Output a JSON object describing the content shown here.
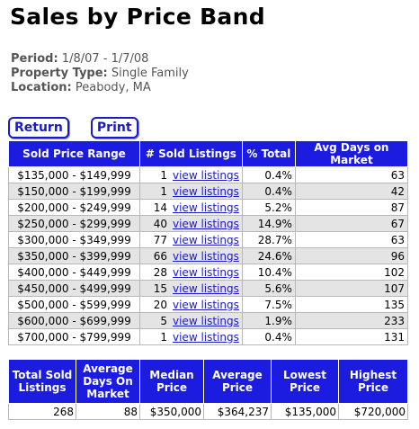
{
  "title": "Sales by Price Band",
  "meta": {
    "period_label": "Period:",
    "period_value": "1/8/07 - 1/7/08",
    "type_label": "Property Type:",
    "type_value": "Single Family",
    "location_label": "Location:",
    "location_value": "Peabody, MA"
  },
  "buttons": {
    "return_label": "Return",
    "print_label": "Print"
  },
  "bands": {
    "headers": {
      "range": "Sold Price Range",
      "listings": "# Sold Listings",
      "pct": "% Total",
      "days": "Avg Days on Market"
    },
    "link_label": "view listings",
    "rows": [
      {
        "range": "$135,000 - $149,999",
        "count": "1",
        "pct": "0.4%",
        "days": "63"
      },
      {
        "range": "$150,000 - $199,999",
        "count": "1",
        "pct": "0.4%",
        "days": "42"
      },
      {
        "range": "$200,000 - $249,999",
        "count": "14",
        "pct": "5.2%",
        "days": "87"
      },
      {
        "range": "$250,000 - $299,999",
        "count": "40",
        "pct": "14.9%",
        "days": "67"
      },
      {
        "range": "$300,000 - $349,999",
        "count": "77",
        "pct": "28.7%",
        "days": "63"
      },
      {
        "range": "$350,000 - $399,999",
        "count": "66",
        "pct": "24.6%",
        "days": "96"
      },
      {
        "range": "$400,000 - $449,999",
        "count": "28",
        "pct": "10.4%",
        "days": "102"
      },
      {
        "range": "$450,000 - $499,999",
        "count": "15",
        "pct": "5.6%",
        "days": "107"
      },
      {
        "range": "$500,000 - $599,999",
        "count": "20",
        "pct": "7.5%",
        "days": "135"
      },
      {
        "range": "$600,000 - $699,999",
        "count": "5",
        "pct": "1.9%",
        "days": "233"
      },
      {
        "range": "$700,000 - $799,999",
        "count": "1",
        "pct": "0.4%",
        "days": "131"
      }
    ]
  },
  "summary": {
    "headers": {
      "total": [
        "Total Sold",
        "Listings"
      ],
      "avg_days": [
        "Average",
        "Days On",
        "Market"
      ],
      "median": [
        "Median",
        "Price"
      ],
      "average": [
        "Average",
        "Price"
      ],
      "lowest": [
        "Lowest",
        "Price"
      ],
      "highest": [
        "Highest",
        "Price"
      ]
    },
    "values": {
      "total": "268",
      "avg_days": "88",
      "median": "$350,000",
      "average": "$364,237",
      "lowest": "$135,000",
      "highest": "$720,000"
    }
  },
  "colors": {
    "header_bg": "#1c1ce0",
    "link": "#1a1ac8",
    "stripe": "#e4e4e4"
  }
}
